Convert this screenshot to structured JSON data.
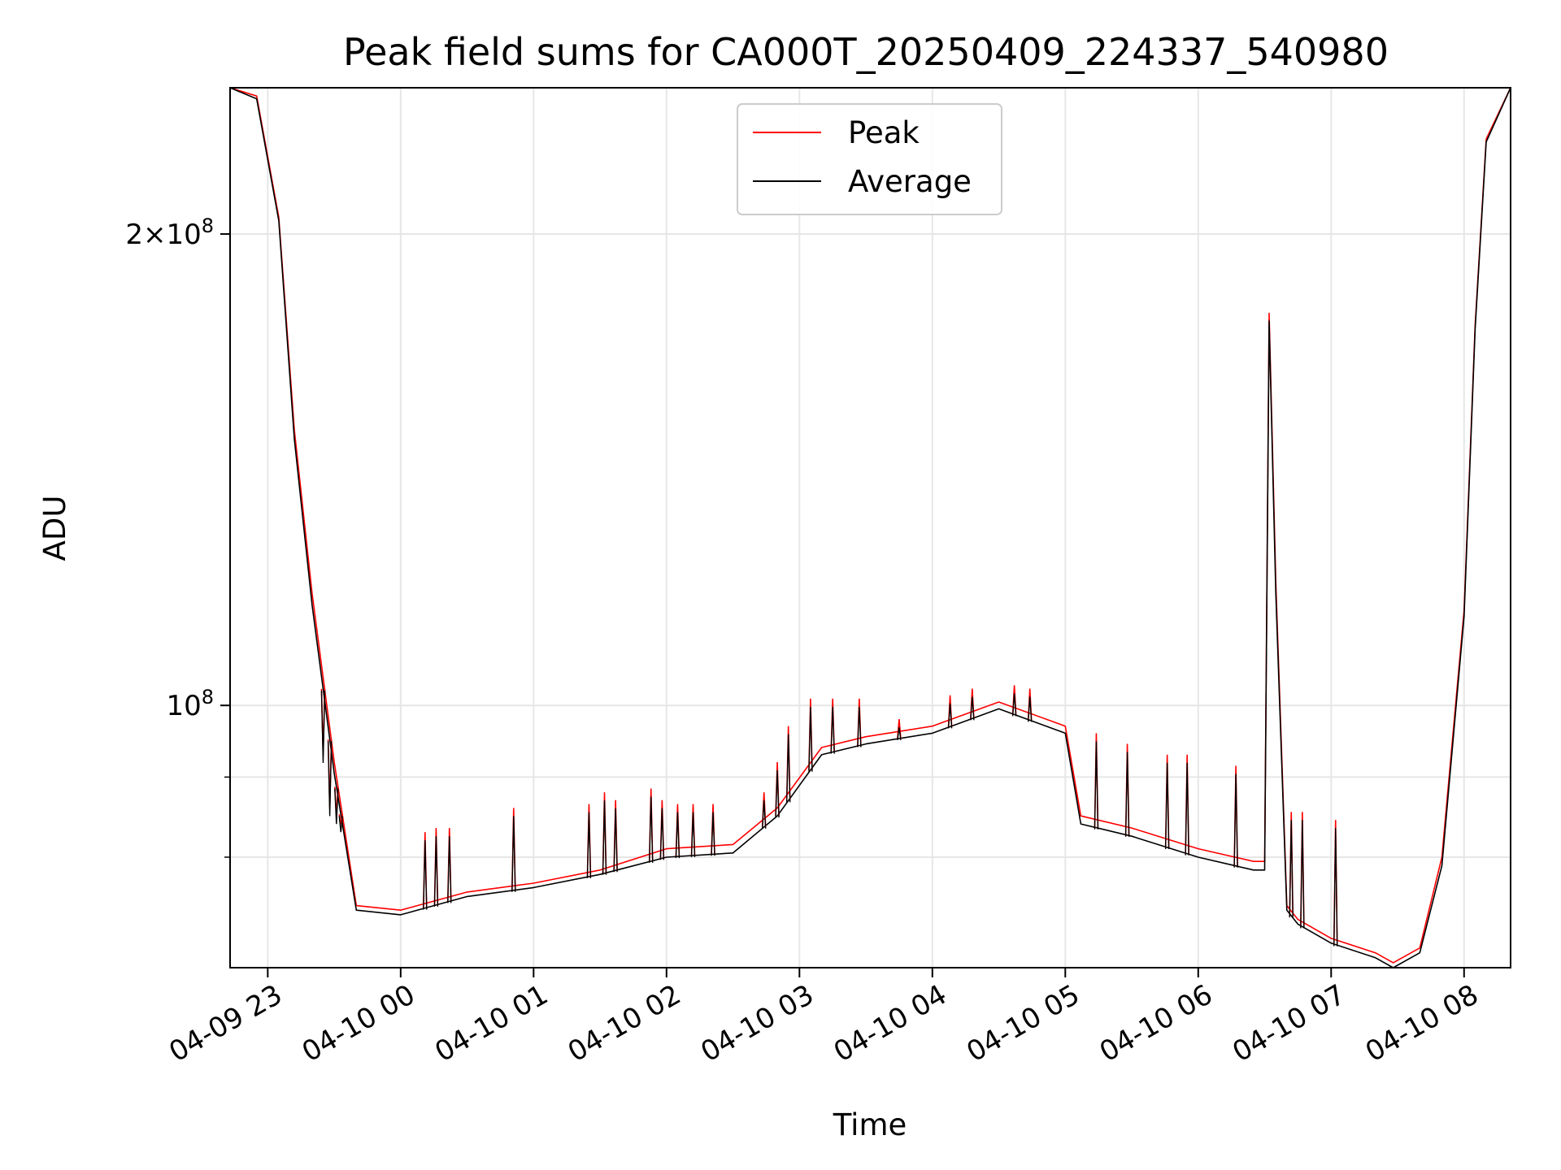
{
  "chart_data": {
    "type": "line",
    "title": "Peak field sums for CA000T_20250409_224337_540980",
    "xlabel": "Time",
    "ylabel": "ADU",
    "yscale": "log",
    "ylim": [
      68000000,
      248000000
    ],
    "xlim": [
      "2025-04-09 22:43",
      "2025-04-10 08:21"
    ],
    "x_ticks": [
      "04-09 23",
      "04-10 00",
      "04-10 01",
      "04-10 02",
      "04-10 03",
      "04-10 04",
      "04-10 05",
      "04-10 06",
      "04-10 07",
      "04-10 08"
    ],
    "y_ticks_major": [
      {
        "value": 100000000,
        "label": "10^8"
      },
      {
        "value": 200000000,
        "label": "2×10^8"
      }
    ],
    "y_ticks_minor": [
      80000000,
      90000000
    ],
    "grid": true,
    "legend": {
      "position": "top-center",
      "entries": [
        "Peak",
        "Average"
      ]
    },
    "colors": {
      "Peak": "#ff0000",
      "Average": "#000000"
    },
    "series": [
      {
        "name": "Peak",
        "x": [
          "2025-04-09 22:43",
          "2025-04-09 22:55",
          "2025-04-09 23:05",
          "2025-04-09 23:12",
          "2025-04-09 23:20",
          "2025-04-09 23:30",
          "2025-04-09 23:40",
          "2025-04-10 00:00",
          "2025-04-10 00:30",
          "2025-04-10 01:00",
          "2025-04-10 01:30",
          "2025-04-10 02:00",
          "2025-04-10 02:30",
          "2025-04-10 02:50",
          "2025-04-10 03:10",
          "2025-04-10 03:30",
          "2025-04-10 04:00",
          "2025-04-10 04:30",
          "2025-04-10 05:00",
          "2025-04-10 05:07",
          "2025-04-10 05:30",
          "2025-04-10 06:00",
          "2025-04-10 06:25",
          "2025-04-10 06:30",
          "2025-04-10 06:32",
          "2025-04-10 06:35",
          "2025-04-10 06:40",
          "2025-04-10 06:45",
          "2025-04-10 07:00",
          "2025-04-10 07:20",
          "2025-04-10 07:28",
          "2025-04-10 07:40",
          "2025-04-10 07:50",
          "2025-04-10 08:00",
          "2025-04-10 08:05",
          "2025-04-10 08:10",
          "2025-04-10 08:21"
        ],
        "y": [
          248000000,
          245000000,
          205000000,
          150000000,
          118000000,
          92000000,
          74500000,
          74000000,
          76000000,
          77000000,
          78500000,
          81000000,
          81500000,
          86000000,
          94000000,
          95500000,
          97000000,
          100500000,
          97000000,
          85000000,
          83500000,
          81000000,
          79500000,
          79500000,
          178000000,
          120000000,
          74500000,
          73000000,
          71000000,
          69500000,
          68500000,
          70000000,
          80000000,
          115000000,
          175000000,
          230000000,
          248000000
        ]
      },
      {
        "name": "Average",
        "x": [
          "2025-04-09 22:43",
          "2025-04-09 22:55",
          "2025-04-09 23:05",
          "2025-04-09 23:12",
          "2025-04-09 23:20",
          "2025-04-09 23:30",
          "2025-04-09 23:40",
          "2025-04-10 00:00",
          "2025-04-10 00:30",
          "2025-04-10 01:00",
          "2025-04-10 01:30",
          "2025-04-10 02:00",
          "2025-04-10 02:30",
          "2025-04-10 02:50",
          "2025-04-10 03:10",
          "2025-04-10 03:30",
          "2025-04-10 04:00",
          "2025-04-10 04:30",
          "2025-04-10 05:00",
          "2025-04-10 05:07",
          "2025-04-10 05:30",
          "2025-04-10 06:00",
          "2025-04-10 06:25",
          "2025-04-10 06:30",
          "2025-04-10 06:32",
          "2025-04-10 06:35",
          "2025-04-10 06:40",
          "2025-04-10 06:45",
          "2025-04-10 07:00",
          "2025-04-10 07:20",
          "2025-04-10 07:28",
          "2025-04-10 07:40",
          "2025-04-10 07:50",
          "2025-04-10 08:00",
          "2025-04-10 08:05",
          "2025-04-10 08:10",
          "2025-04-10 08:21"
        ],
        "y": [
          248000000,
          244000000,
          204000000,
          148000000,
          116000000,
          90500000,
          74000000,
          73500000,
          75500000,
          76500000,
          78000000,
          80000000,
          80500000,
          85000000,
          93000000,
          94500000,
          96000000,
          99500000,
          96000000,
          84000000,
          82500000,
          80000000,
          78500000,
          78500000,
          176000000,
          118000000,
          74000000,
          72500000,
          70500000,
          69000000,
          68000000,
          69500000,
          79000000,
          114000000,
          174000000,
          229000000,
          248000000
        ]
      }
    ],
    "spikes": [
      {
        "x": "2025-04-09 23:25",
        "y": 93000000
      },
      {
        "x": "2025-04-09 23:28",
        "y": 86000000
      },
      {
        "x": "2025-04-09 23:31",
        "y": 85000000
      },
      {
        "x": "2025-04-09 23:33",
        "y": 84000000
      },
      {
        "x": "2025-04-10 00:11",
        "y": 83000000
      },
      {
        "x": "2025-04-10 00:16",
        "y": 83500000
      },
      {
        "x": "2025-04-10 00:22",
        "y": 83500000
      },
      {
        "x": "2025-04-10 00:51",
        "y": 86000000
      },
      {
        "x": "2025-04-10 01:25",
        "y": 86500000
      },
      {
        "x": "2025-04-10 01:32",
        "y": 88000000
      },
      {
        "x": "2025-04-10 01:37",
        "y": 87000000
      },
      {
        "x": "2025-04-10 01:53",
        "y": 88500000
      },
      {
        "x": "2025-04-10 01:58",
        "y": 87000000
      },
      {
        "x": "2025-04-10 02:05",
        "y": 86500000
      },
      {
        "x": "2025-04-10 02:12",
        "y": 86500000
      },
      {
        "x": "2025-04-10 02:21",
        "y": 86500000
      },
      {
        "x": "2025-04-10 02:44",
        "y": 88000000
      },
      {
        "x": "2025-04-10 02:50",
        "y": 92000000
      },
      {
        "x": "2025-04-10 02:55",
        "y": 97000000
      },
      {
        "x": "2025-04-10 03:05",
        "y": 101000000
      },
      {
        "x": "2025-04-10 03:15",
        "y": 101000000
      },
      {
        "x": "2025-04-10 03:27",
        "y": 101000000
      },
      {
        "x": "2025-04-10 03:45",
        "y": 98000000
      },
      {
        "x": "2025-04-10 04:08",
        "y": 101500000
      },
      {
        "x": "2025-04-10 04:18",
        "y": 102500000
      },
      {
        "x": "2025-04-10 04:37",
        "y": 103000000
      },
      {
        "x": "2025-04-10 04:44",
        "y": 102500000
      },
      {
        "x": "2025-04-10 05:14",
        "y": 96000000
      },
      {
        "x": "2025-04-10 05:28",
        "y": 94500000
      },
      {
        "x": "2025-04-10 05:46",
        "y": 93000000
      },
      {
        "x": "2025-04-10 05:55",
        "y": 93000000
      },
      {
        "x": "2025-04-10 06:17",
        "y": 91500000
      },
      {
        "x": "2025-04-10 06:42",
        "y": 85500000
      },
      {
        "x": "2025-04-10 06:47",
        "y": 85500000
      },
      {
        "x": "2025-04-10 07:02",
        "y": 84500000
      }
    ]
  }
}
